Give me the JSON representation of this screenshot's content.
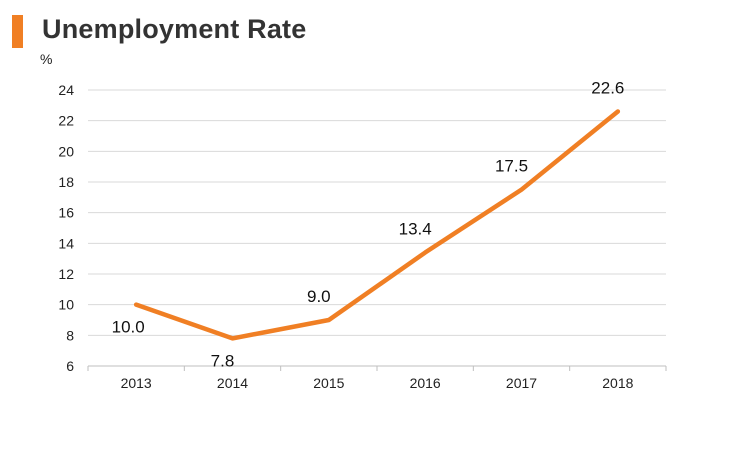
{
  "title": "Unemployment Rate",
  "unit": "%",
  "colors": {
    "accent": "#f07f24",
    "line": "#f07f24",
    "grid": "#d9d9d9",
    "text": "#333333"
  },
  "chart_data": {
    "type": "line",
    "categories": [
      "2013",
      "2014",
      "2015",
      "2016",
      "2017",
      "2018"
    ],
    "series": [
      {
        "values": [
          10.0,
          7.8,
          9.0,
          13.4,
          17.5,
          22.6
        ]
      }
    ],
    "data_labels": [
      "10.0",
      "7.8",
      "9.0",
      "13.4",
      "17.5",
      "22.6"
    ],
    "yticks": [
      "6",
      "8",
      "10",
      "12",
      "14",
      "16",
      "18",
      "20",
      "22",
      "24"
    ],
    "ylim": [
      6,
      24
    ],
    "grid": true,
    "legend": "none"
  }
}
